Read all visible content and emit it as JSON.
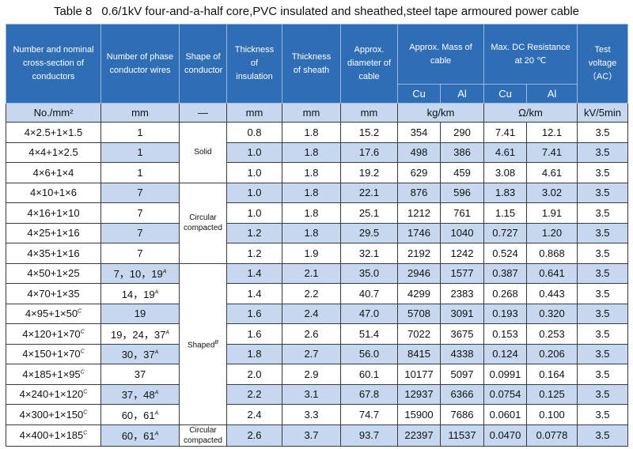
{
  "table_label": "Table 8",
  "title": "0.6/1kV four-and-a-half core,PVC insulated and sheathed,steel tape armoured power cable",
  "header": {
    "conductor": "Number and nominal cross-section of conductors",
    "phase": "Number of phase conductor wires",
    "shape": "Shape of conductor",
    "insulation": "Thickness of insulation",
    "sheath": "Thickness of sheath",
    "diameter": "Approx. diameter of cable",
    "mass": "Approx. Mass of cable",
    "resistance": "Max. DC Resistance at 20 ℃",
    "test": "Test voltage （AC）",
    "mass_cu": "Cu",
    "mass_al": "Al",
    "res_cu": "Cu",
    "res_al": "Al"
  },
  "units": [
    "No./mm²",
    "mm",
    "—",
    "mm",
    "mm",
    "mm",
    "kg/km",
    "Ω/km",
    "kV/5min"
  ],
  "shape_groups": [
    {
      "label": "Solid"
    },
    {
      "label": "Circular compacted"
    },
    {
      "label": "Shaped",
      "sup": "B"
    },
    {
      "label": "Circular compacted"
    }
  ],
  "rows": [
    {
      "conductor": "4×2.5+1×1.5",
      "phase": "1",
      "insulation": "0.8",
      "sheath": "1.8",
      "diameter": "15.2",
      "cu": "354",
      "al": "290",
      "res_cu": "7.41",
      "res_al": "12.1",
      "test": "3.5"
    },
    {
      "conductor": "4×4+1×2.5",
      "phase": "1",
      "insulation": "1.0",
      "sheath": "1.8",
      "diameter": "17.6",
      "cu": "498",
      "al": "386",
      "res_cu": "4.61",
      "res_al": "7.41",
      "test": "3.5"
    },
    {
      "conductor": "4×6+1×4",
      "phase": "1",
      "insulation": "1.0",
      "sheath": "1.8",
      "diameter": "19.2",
      "cu": "629",
      "al": "459",
      "res_cu": "3.08",
      "res_al": "4.61",
      "test": "3.5"
    },
    {
      "conductor": "4×10+1×6",
      "phase": "7",
      "insulation": "1.0",
      "sheath": "1.8",
      "diameter": "22.1",
      "cu": "876",
      "al": "596",
      "res_cu": "1.83",
      "res_al": "3.02",
      "test": "3.5"
    },
    {
      "conductor": "4×16+1×10",
      "phase": "7",
      "insulation": "1.0",
      "sheath": "1.8",
      "diameter": "25.1",
      "cu": "1212",
      "al": "761",
      "res_cu": "1.15",
      "res_al": "1.91",
      "test": "3.5"
    },
    {
      "conductor": "4×25+1×16",
      "phase": "7",
      "insulation": "1.2",
      "sheath": "1.8",
      "diameter": "29.5",
      "cu": "1746",
      "al": "1040",
      "res_cu": "0.727",
      "res_al": "1.20",
      "test": "3.5"
    },
    {
      "conductor": "4×35+1×16",
      "phase": "7",
      "insulation": "1.2",
      "sheath": "1.9",
      "diameter": "32.1",
      "cu": "2192",
      "al": "1242",
      "res_cu": "0.524",
      "res_al": "0.868",
      "test": "3.5"
    },
    {
      "conductor": "4×50+1×25",
      "phase": "7，10，19",
      "phase_sup": "A",
      "insulation": "1.4",
      "sheath": "2.1",
      "diameter": "35.0",
      "cu": "2946",
      "al": "1577",
      "res_cu": "0.387",
      "res_al": "0.641",
      "test": "3.5"
    },
    {
      "conductor": "4×70+1×35",
      "phase": "14，19",
      "phase_sup": "A",
      "insulation": "1.4",
      "sheath": "2.2",
      "diameter": "40.7",
      "cu": "4299",
      "al": "2383",
      "res_cu": "0.268",
      "res_al": "0.443",
      "test": "3.5"
    },
    {
      "conductor": "4×95+1×50",
      "conductor_sup": "C",
      "phase": "19",
      "insulation": "1.6",
      "sheath": "2.4",
      "diameter": "47.0",
      "cu": "5708",
      "al": "3091",
      "res_cu": "0.193",
      "res_al": "0.320",
      "test": "3.5"
    },
    {
      "conductor": "4×120+1×70",
      "conductor_sup": "C",
      "phase": "19，24，37",
      "phase_sup": "A",
      "insulation": "1.6",
      "sheath": "2.6",
      "diameter": "51.4",
      "cu": "7022",
      "al": "3675",
      "res_cu": "0.153",
      "res_al": "0.253",
      "test": "3.5"
    },
    {
      "conductor": "4×150+1×70",
      "conductor_sup": "C",
      "phase": "30，37",
      "phase_sup": "A",
      "insulation": "1.8",
      "sheath": "2.7",
      "diameter": "56.0",
      "cu": "8415",
      "al": "4338",
      "res_cu": "0.124",
      "res_al": "0.206",
      "test": "3.5"
    },
    {
      "conductor": "4×185+1×95",
      "conductor_sup": "C",
      "phase": "37",
      "insulation": "2.0",
      "sheath": "2.9",
      "diameter": "60.1",
      "cu": "10177",
      "al": "5097",
      "res_cu": "0.0991",
      "res_al": "0.164",
      "test": "3.5"
    },
    {
      "conductor": "4×240+1×120",
      "conductor_sup": "C",
      "phase": "37，48",
      "phase_sup": "A",
      "insulation": "2.2",
      "sheath": "3.1",
      "diameter": "67.8",
      "cu": "12937",
      "al": "6366",
      "res_cu": "0.0754",
      "res_al": "0.125",
      "test": "3.5"
    },
    {
      "conductor": "4×300+1×150",
      "conductor_sup": "C",
      "phase": "60，61",
      "phase_sup": "A",
      "insulation": "2.4",
      "sheath": "3.3",
      "diameter": "74.7",
      "cu": "15900",
      "al": "7686",
      "res_cu": "0.0601",
      "res_al": "0.100",
      "test": "3.5"
    },
    {
      "conductor": "4×400+1×185",
      "conductor_sup": "C",
      "phase": "60，61",
      "phase_sup": "A",
      "insulation": "2.6",
      "sheath": "3.7",
      "diameter": "93.7",
      "cu": "22397",
      "al": "11537",
      "res_cu": "0.0470",
      "res_al": "0.0778",
      "test": "3.5"
    }
  ]
}
